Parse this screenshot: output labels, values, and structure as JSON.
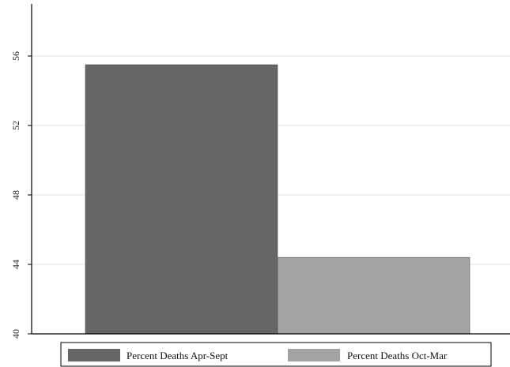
{
  "chart_data": {
    "type": "bar",
    "series": [
      {
        "name": "Percent Deaths Apr-Sept",
        "value": 55.5,
        "color": "#666666"
      },
      {
        "name": "Percent Deaths Oct-Mar",
        "value": 44.4,
        "color": "#a3a3a3"
      }
    ],
    "ylim": [
      40,
      59
    ],
    "yticks": [
      {
        "value": 40,
        "label": "40"
      },
      {
        "value": 44,
        "label": "44"
      },
      {
        "value": 48,
        "label": "48"
      },
      {
        "value": 52,
        "label": "52"
      },
      {
        "value": 56,
        "label": "56"
      }
    ],
    "grid": true,
    "legend_position": "bottom",
    "title": "",
    "xlabel": "",
    "ylabel": ""
  }
}
